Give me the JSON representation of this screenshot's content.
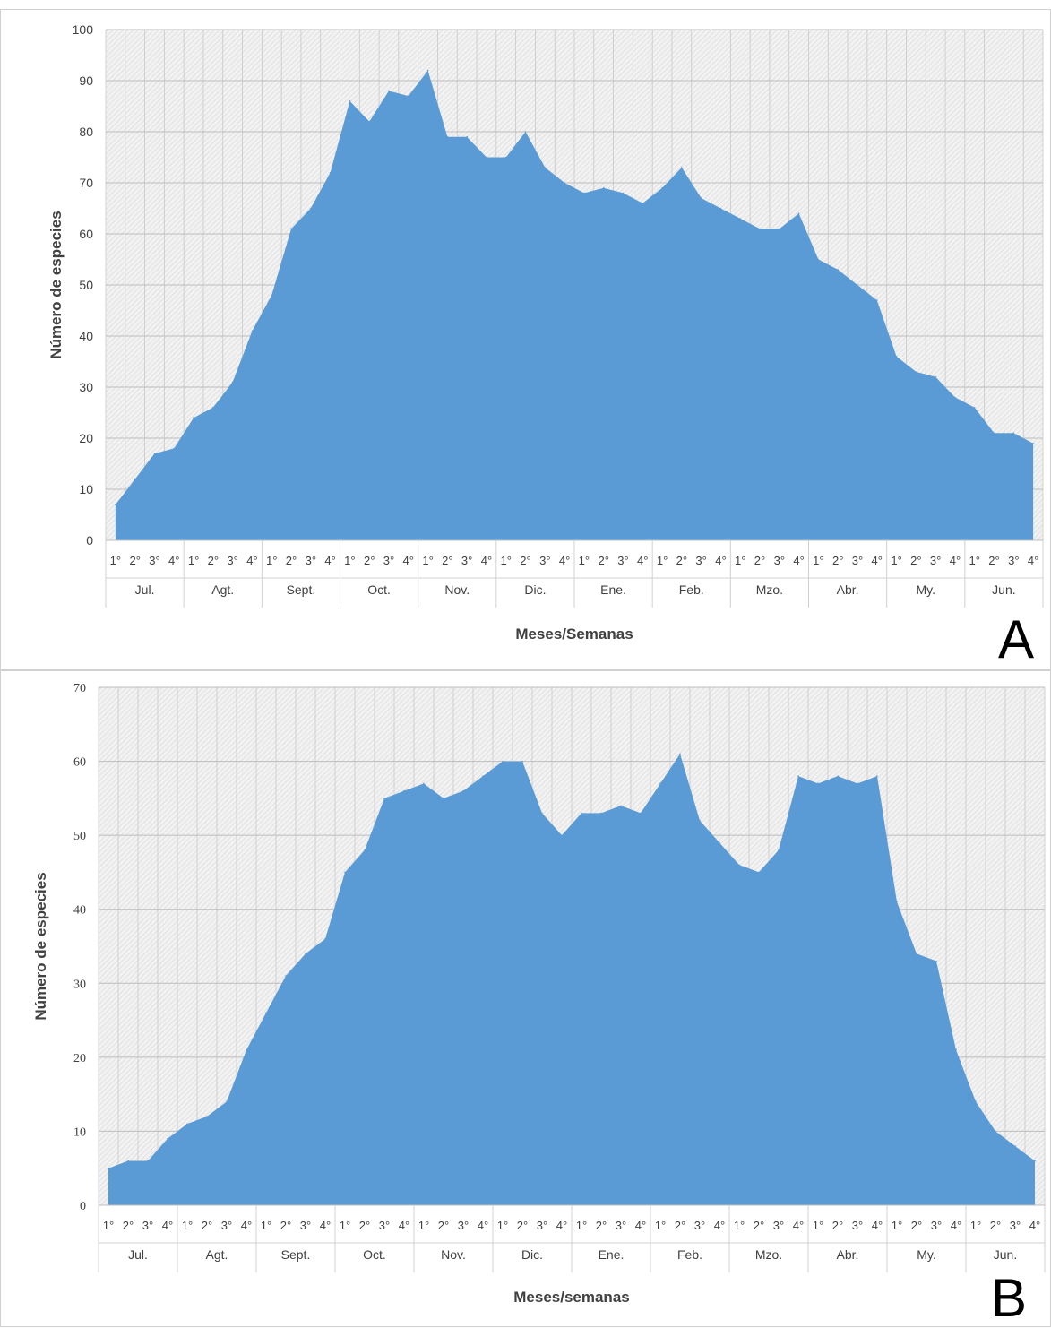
{
  "chart_data": [
    {
      "type": "area",
      "panel_label": "A",
      "xlabel": "Meses/Semanas",
      "ylabel": "Número de especies",
      "ylim": [
        0,
        100
      ],
      "yticks": [
        "0",
        "10",
        "20",
        "30",
        "40",
        "50",
        "60",
        "70",
        "80",
        "90",
        "100"
      ],
      "grid": true,
      "color": "#5B9BD5",
      "weeks": [
        "1°",
        "2°",
        "3°",
        "4°"
      ],
      "months": [
        "Jul.",
        "Agt.",
        "Sept.",
        "Oct.",
        "Nov.",
        "Dic.",
        "Ene.",
        "Feb.",
        "Mzo.",
        "Abr.",
        "My.",
        "Jun."
      ],
      "values": [
        7,
        12,
        17,
        18,
        24,
        26,
        31,
        41,
        48,
        61,
        65,
        72,
        86,
        82,
        88,
        87,
        92,
        79,
        79,
        75,
        75,
        80,
        73,
        70,
        68,
        69,
        68,
        66,
        69,
        73,
        67,
        65,
        63,
        61,
        61,
        64,
        55,
        53,
        50,
        47,
        36,
        33,
        32,
        28,
        26,
        21,
        21,
        19
      ]
    },
    {
      "type": "area",
      "panel_label": "B",
      "xlabel": "Meses/semanas",
      "ylabel": "Número de especies",
      "ylim": [
        0,
        70
      ],
      "yticks": [
        "0",
        "10",
        "20",
        "30",
        "40",
        "50",
        "60",
        "70"
      ],
      "grid": true,
      "color": "#5B9BD5",
      "weeks": [
        "1°",
        "2°",
        "3°",
        "4°"
      ],
      "months": [
        "Jul.",
        "Agt.",
        "Sept.",
        "Oct.",
        "Nov.",
        "Dic.",
        "Ene.",
        "Feb.",
        "Mzo.",
        "Abr.",
        "My.",
        "Jun."
      ],
      "values": [
        5,
        6,
        6,
        9,
        11,
        12,
        14,
        21,
        26,
        31,
        34,
        36,
        45,
        48,
        55,
        56,
        57,
        55,
        56,
        58,
        60,
        60,
        53,
        50,
        53,
        53,
        54,
        53,
        57,
        61,
        52,
        49,
        46,
        45,
        48,
        58,
        57,
        58,
        57,
        58,
        41,
        34,
        33,
        21,
        14,
        10,
        8,
        6
      ]
    }
  ]
}
